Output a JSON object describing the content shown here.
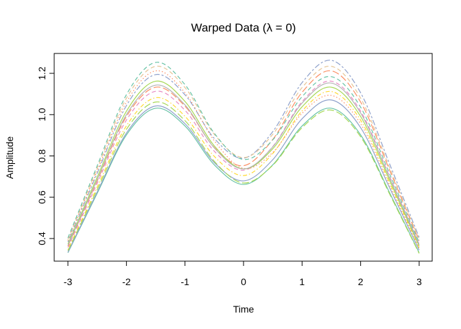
{
  "chart_data": {
    "type": "line",
    "title": "Warped Data (λ = 0)",
    "xlabel": "Time",
    "ylabel": "Amplitude",
    "xlim": [
      -3.14,
      3.24
    ],
    "ylim": [
      0.3,
      1.31
    ],
    "xticks": [
      -3,
      -2,
      -1,
      0,
      1,
      2,
      3
    ],
    "xtick_labels": [
      "-3",
      "-2",
      "-1",
      "0",
      "1",
      "2",
      "3"
    ],
    "yticks": [
      0.4,
      0.6,
      0.8,
      1.0,
      1.2
    ],
    "ytick_labels": [
      "0.4",
      "0.6",
      "0.8",
      "1.0",
      "1.2"
    ],
    "grid": false,
    "x": [
      -3,
      -2.5,
      -2,
      -1.5,
      -1,
      -0.5,
      0,
      0.5,
      1,
      1.5,
      2,
      2.5,
      3
    ],
    "series": [
      {
        "color": "#66C2A5",
        "dash": "solid",
        "values": [
          0.331,
          0.619,
          0.902,
          1.031,
          0.945,
          0.757,
          0.662,
          0.757,
          0.945,
          1.031,
          0.902,
          0.619,
          0.331
        ]
      },
      {
        "color": "#8DA0CB",
        "dash": "solid",
        "values": [
          0.334,
          0.625,
          0.911,
          1.042,
          0.956,
          0.768,
          0.679,
          0.782,
          0.98,
          1.071,
          0.937,
          0.643,
          0.344
        ]
      },
      {
        "color": "#FFD92F",
        "dash": "dotdash",
        "values": [
          0.347,
          0.649,
          0.946,
          1.082,
          0.992,
          0.798,
          0.705,
          0.812,
          1.018,
          1.112,
          0.973,
          0.667,
          0.357
        ]
      },
      {
        "color": "#E78AC3",
        "dash": "dashed",
        "values": [
          0.357,
          0.667,
          0.974,
          1.113,
          1.021,
          0.823,
          0.731,
          0.846,
          1.063,
          1.162,
          1.017,
          0.697,
          0.373
        ]
      },
      {
        "color": "#FC8D62",
        "dash": "longdash",
        "values": [
          0.364,
          0.679,
          0.991,
          1.133,
          1.041,
          0.841,
          0.753,
          0.88,
          1.108,
          1.212,
          1.061,
          0.728,
          0.39
        ]
      },
      {
        "color": "#A6D854",
        "dash": "solid",
        "values": [
          0.373,
          0.697,
          1.017,
          1.162,
          1.064,
          0.849,
          0.737,
          0.835,
          1.038,
          1.133,
          0.991,
          0.679,
          0.364
        ]
      },
      {
        "color": "#8DA0CB",
        "dash": "twodash",
        "values": [
          0.383,
          0.716,
          1.044,
          1.194,
          1.096,
          0.885,
          0.789,
          0.918,
          1.155,
          1.263,
          1.106,
          0.758,
          0.406
        ]
      },
      {
        "color": "#FC8D62",
        "dash": "dotted",
        "values": [
          0.39,
          0.728,
          1.061,
          1.212,
          1.106,
          0.874,
          0.74,
          0.817,
          1.006,
          1.093,
          0.956,
          0.655,
          0.351
        ]
      },
      {
        "color": "#E5C494",
        "dash": "dashed",
        "values": [
          0.396,
          0.74,
          1.08,
          1.234,
          1.131,
          0.905,
          0.792,
          0.905,
          1.131,
          1.234,
          1.08,
          0.74,
          0.396
        ]
      },
      {
        "color": "#66C2A5",
        "dash": "dashed",
        "values": [
          0.403,
          0.752,
          1.097,
          1.253,
          1.145,
          0.91,
          0.783,
          0.878,
          1.087,
          1.184,
          1.036,
          0.71,
          0.38
        ]
      },
      {
        "color": "#A6D854",
        "dash": "longdash",
        "values": [
          0.341,
          0.637,
          0.929,
          1.061,
          0.971,
          0.774,
          0.669,
          0.755,
          0.937,
          1.022,
          0.893,
          0.613,
          0.328
        ]
      },
      {
        "color": "#B3B3B3",
        "dash": "solid",
        "values": [
          0.367,
          0.685,
          1.0,
          1.143,
          1.047,
          0.839,
          0.737,
          0.844,
          1.056,
          1.153,
          1.008,
          0.691,
          0.37
        ]
      }
    ]
  }
}
